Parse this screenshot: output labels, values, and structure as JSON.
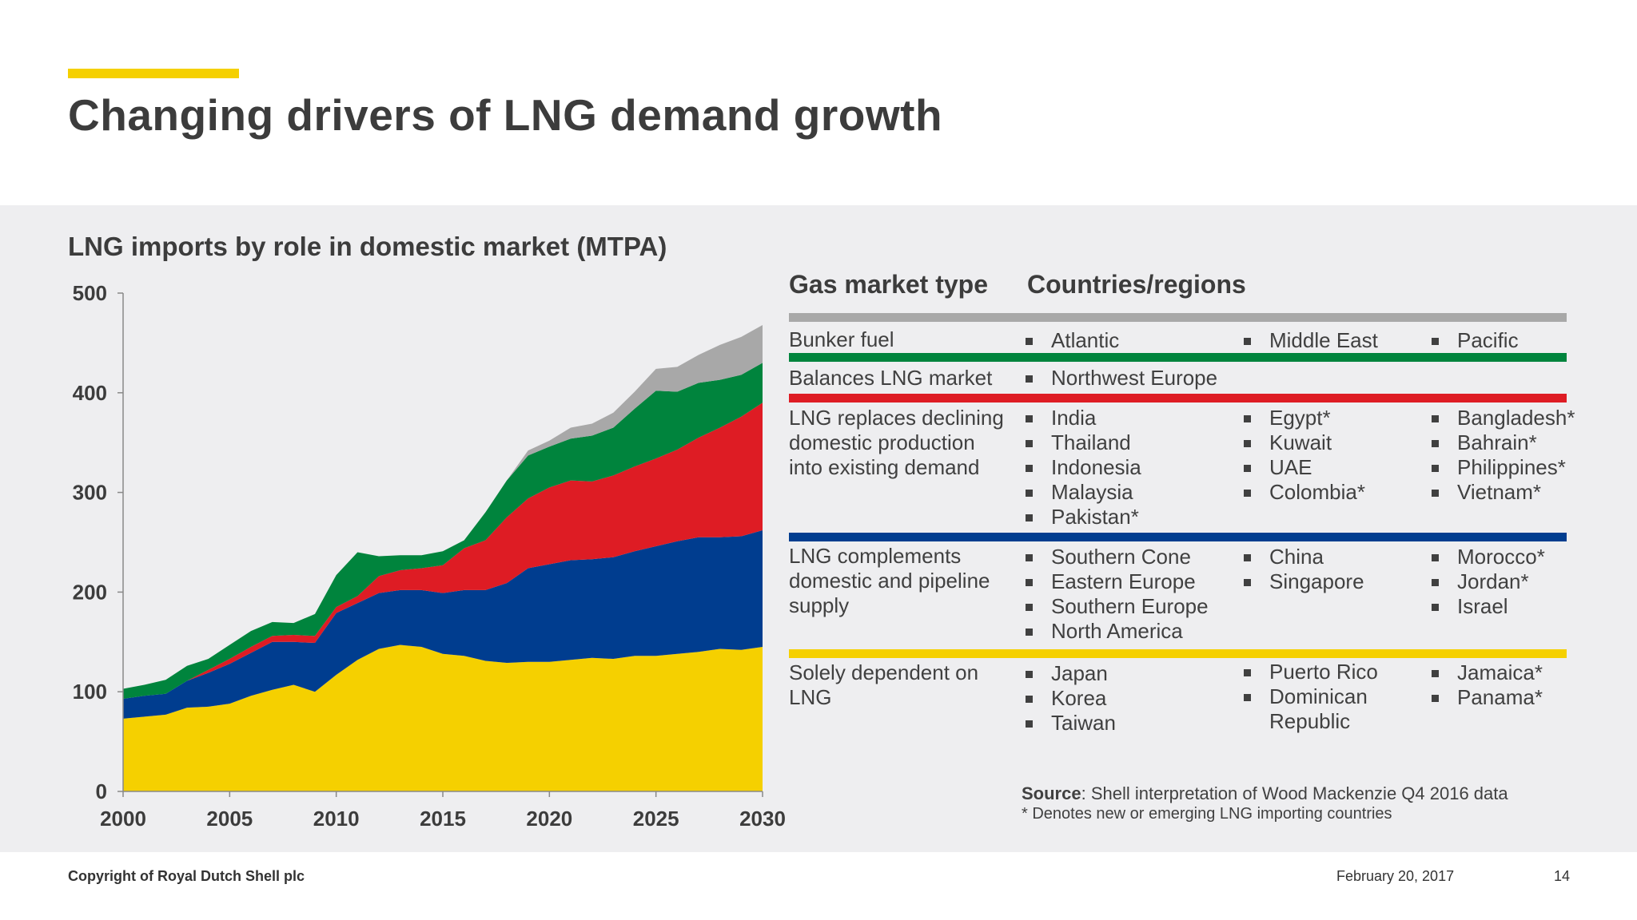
{
  "header": {
    "title": "Changing drivers of LNG demand growth"
  },
  "colors": {
    "accent": "#f5d000",
    "panel": "#eeeef0"
  },
  "chart_data": {
    "type": "area",
    "stacked": true,
    "title": "LNG imports by role in domestic market (MTPA)",
    "xlabel": "",
    "ylabel": "",
    "x": [
      2000,
      2001,
      2002,
      2003,
      2004,
      2005,
      2006,
      2007,
      2008,
      2009,
      2010,
      2011,
      2012,
      2013,
      2014,
      2015,
      2016,
      2017,
      2018,
      2019,
      2020,
      2021,
      2022,
      2023,
      2024,
      2025,
      2026,
      2027,
      2028,
      2029,
      2030
    ],
    "xlim": [
      2000,
      2030
    ],
    "ylim": [
      0,
      500
    ],
    "xticks": [
      2000,
      2005,
      2010,
      2015,
      2020,
      2025,
      2030
    ],
    "yticks": [
      0,
      100,
      200,
      300,
      400,
      500
    ],
    "grid": false,
    "legend": "none",
    "series": [
      {
        "color": "#f5d000",
        "values": [
          73,
          75,
          77,
          84,
          85,
          88,
          96,
          102,
          107,
          100,
          117,
          132,
          143,
          147,
          145,
          138,
          136,
          131,
          129,
          130,
          130,
          132,
          134,
          133,
          136,
          136,
          138,
          140,
          143,
          142,
          145
        ]
      },
      {
        "color": "#003d8f",
        "values": [
          20,
          21,
          21,
          27,
          34,
          40,
          43,
          48,
          43,
          49,
          62,
          57,
          56,
          55,
          57,
          61,
          66,
          71,
          80,
          94,
          98,
          100,
          99,
          102,
          105,
          110,
          113,
          115,
          112,
          114,
          117
        ]
      },
      {
        "color": "#de1c24",
        "values": [
          0,
          0,
          0,
          0,
          3,
          5,
          6,
          6,
          7,
          7,
          6,
          7,
          17,
          20,
          22,
          28,
          42,
          50,
          66,
          70,
          77,
          80,
          78,
          82,
          85,
          88,
          92,
          100,
          110,
          120,
          128
        ]
      },
      {
        "color": "#00843d",
        "values": [
          10,
          11,
          14,
          15,
          11,
          14,
          16,
          14,
          12,
          22,
          32,
          44,
          20,
          15,
          13,
          14,
          8,
          28,
          37,
          43,
          41,
          42,
          46,
          48,
          58,
          68,
          58,
          55,
          48,
          42,
          40
        ]
      },
      {
        "color": "#a8a8a8",
        "values": [
          0,
          0,
          0,
          0,
          0,
          0,
          0,
          0,
          0,
          0,
          0,
          0,
          0,
          0,
          0,
          0,
          0,
          0,
          0,
          5,
          6,
          11,
          12,
          15,
          17,
          22,
          25,
          28,
          35,
          38,
          38
        ]
      }
    ]
  },
  "table": {
    "header_type": "Gas market type",
    "header_countries": "Countries/regions",
    "rows": [
      {
        "type": "Bunker fuel",
        "color": "#a8a8a8",
        "col1": [
          "Atlantic"
        ],
        "col2": [
          "Middle East"
        ],
        "col3": [
          "Pacific"
        ]
      },
      {
        "type": "Balances LNG market",
        "color": "#00843d",
        "col1": [
          "Northwest Europe"
        ],
        "col2": [],
        "col3": []
      },
      {
        "type": "LNG replaces declining domestic production into existing demand",
        "color": "#de1c24",
        "col1": [
          "India",
          "Thailand",
          "Indonesia",
          "Malaysia",
          "Pakistan*"
        ],
        "col2": [
          "Egypt*",
          "Kuwait",
          "UAE",
          "Colombia*"
        ],
        "col3": [
          "Bangladesh*",
          "Bahrain*",
          "Philippines*",
          "Vietnam*"
        ]
      },
      {
        "type": "LNG complements domestic and pipeline supply",
        "color": "#003d8f",
        "col1": [
          "Southern Cone",
          "Eastern Europe",
          "Southern Europe",
          "North America"
        ],
        "col2": [
          "China",
          "Singapore"
        ],
        "col3": [
          "Morocco*",
          "Jordan*",
          "Israel"
        ]
      },
      {
        "type": "Solely dependent on LNG",
        "color": "#f5d000",
        "col1": [
          "Japan",
          "Korea",
          "Taiwan"
        ],
        "col2": [
          "Puerto Rico",
          "Dominican",
          "Republic"
        ],
        "col3": [
          "Jamaica*",
          "Panama*"
        ]
      }
    ]
  },
  "source": {
    "label": "Source",
    "text": ": Shell interpretation of Wood Mackenzie Q4 2016 data"
  },
  "note": "* Denotes new or emerging LNG importing countries",
  "footer": {
    "copyright": "Copyright of Royal Dutch Shell plc",
    "date": "February 20, 2017",
    "page": "14"
  }
}
